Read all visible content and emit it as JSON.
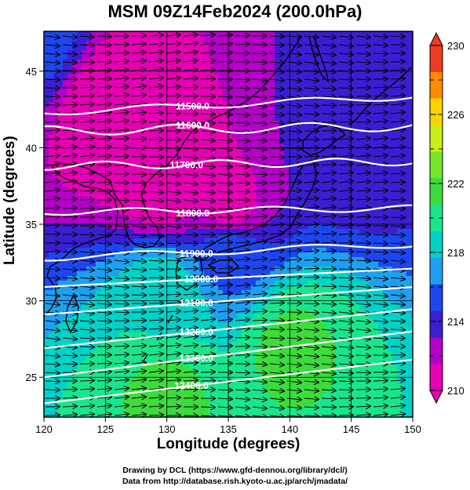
{
  "title": "MSM 09Z14Feb2024 (200.0hPa)",
  "xlabel": "Longitude (degrees)",
  "ylabel": "Latitude  (degrees)",
  "credits": [
    "Drawing by DCL (https://www.gfd-dennou.org/library/dcl/)",
    "Data from http://database.rish.kyoto-u.ac.jp/arch/jmadata/"
  ],
  "chart_data": {
    "type": "heatmap",
    "xlim": [
      120,
      150
    ],
    "ylim": [
      22.4,
      47.6
    ],
    "x_ticks": [
      "120",
      "125",
      "130",
      "135",
      "140",
      "145",
      "150"
    ],
    "y_ticks": [
      "25",
      "30",
      "35",
      "40",
      "45"
    ],
    "x_tick_values": [
      120,
      125,
      130,
      135,
      140,
      145,
      150
    ],
    "y_tick_values": [
      25,
      30,
      35,
      40,
      45
    ],
    "grid": true,
    "colorbar": {
      "min": 210,
      "max": 230,
      "tick_labels": [
        "210",
        "214",
        "218",
        "222",
        "226",
        "230"
      ],
      "tick_values": [
        210,
        214,
        218,
        222,
        226,
        230
      ],
      "colors": [
        "#e600b4",
        "#b400c8",
        "#3c1ed2",
        "#1e46f0",
        "#1ea0f0",
        "#00d2c8",
        "#19e68c",
        "#3cdc3c",
        "#78e628",
        "#c8f014",
        "#ffd200",
        "#ff8c00",
        "#f03c1e"
      ]
    },
    "temperature_field_k": [
      {
        "lat": 47,
        "lon": 120,
        "value": 215
      },
      {
        "lat": 43,
        "lon": 125,
        "value": 210
      },
      {
        "lat": 38,
        "lon": 130,
        "value": 210
      },
      {
        "lat": 36,
        "lon": 135,
        "value": 211
      },
      {
        "lat": 40,
        "lon": 145,
        "value": 214
      },
      {
        "lat": 33,
        "lon": 135,
        "value": 216
      },
      {
        "lat": 30,
        "lon": 130,
        "value": 219
      },
      {
        "lat": 27,
        "lon": 140,
        "value": 221
      },
      {
        "lat": 24,
        "lon": 130,
        "value": 221
      }
    ],
    "height_contours": [
      {
        "label": "11500.0",
        "value": 11500,
        "label_lon": 132.1
      },
      {
        "label": "11600.0",
        "value": 11600,
        "label_lon": 132.1
      },
      {
        "label": "11700.0",
        "value": 11700,
        "label_lon": 131.6
      },
      {
        "label": "11800.0",
        "value": 11800,
        "label_lon": 132.1
      },
      {
        "label": "11900.0",
        "value": 11900,
        "label_lon": 132.4
      },
      {
        "label": "12000.0",
        "value": 12000,
        "label_lon": 132.8
      },
      {
        "label": "12100.0",
        "value": 12100,
        "label_lon": 132.4
      },
      {
        "label": "12200.0",
        "value": 12200,
        "label_lon": 132.4
      },
      {
        "label": "12300.0",
        "value": 12300,
        "label_lon": 132.4
      },
      {
        "label": "12400.0",
        "value": 12400,
        "label_lon": 132.0
      }
    ],
    "wind_vectors": "westerly"
  }
}
